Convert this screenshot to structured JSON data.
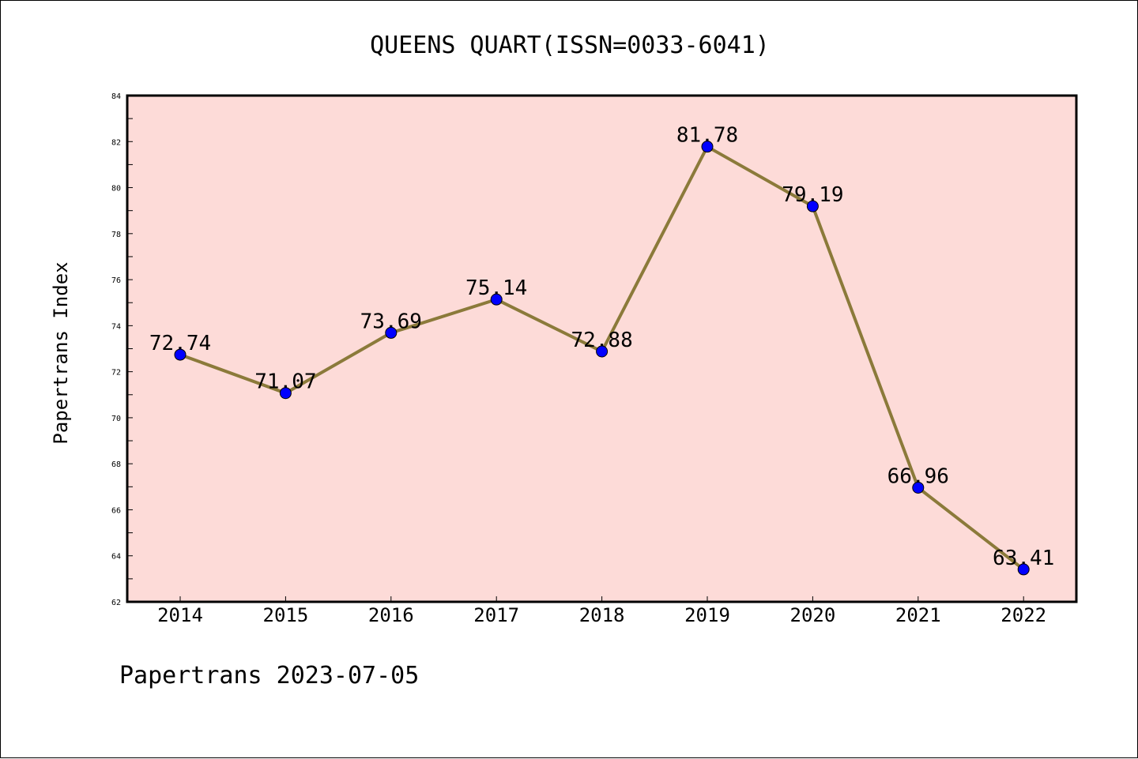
{
  "chart_data": {
    "type": "line",
    "title": "QUEENS QUART(ISSN=0033-6041)",
    "xlabel": "",
    "ylabel": "Papertrans Index",
    "footer": "Papertrans 2023-07-05",
    "categories": [
      "2014",
      "2015",
      "2016",
      "2017",
      "2018",
      "2019",
      "2020",
      "2021",
      "2022"
    ],
    "series": [
      {
        "values": [
          72.74,
          71.07,
          73.69,
          75.14,
          72.88,
          81.78,
          79.19,
          66.96,
          63.41
        ],
        "labels": [
          "72.74",
          "71.07",
          "73.69",
          "75.14",
          "72.88",
          "81.78",
          "79.19",
          "66.96",
          "63.41"
        ]
      }
    ],
    "ylim": [
      62,
      84
    ],
    "yticks": [
      "62",
      "64",
      "66",
      "68",
      "70",
      "72",
      "74",
      "76",
      "78",
      "80",
      "82",
      "84"
    ],
    "grid": false,
    "colors": {
      "plot_background": "#fddbd8",
      "line": "#8b7a3a",
      "marker": "#0000ff"
    }
  }
}
